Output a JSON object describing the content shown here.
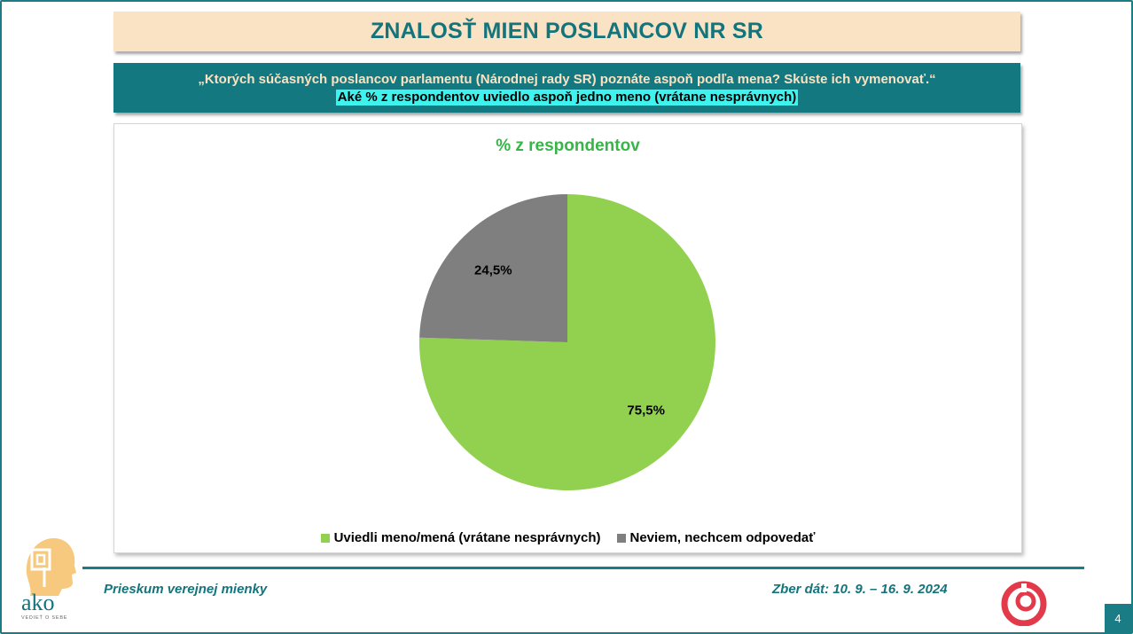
{
  "header": {
    "title": "ZNALOSŤ MIEN POSLANCOV NR SR",
    "question": "„Ktorých súčasných poslancov parlamentu (Národnej rady SR) poznáte aspoň podľa mena? Skúste ich vymenovať.“",
    "subquestion": "Aké % z respondentov uviedlo aspoň jedno meno (vrátane nesprávnych)"
  },
  "chart_data": {
    "type": "pie",
    "title": "% z respondentov",
    "categories": [
      "Uviedli meno/mená (vrátane nesprávnych)",
      "Neviem, nechcem odpovedať"
    ],
    "values": [
      75.5,
      24.5
    ],
    "value_labels": [
      "75,5%",
      "24,5%"
    ],
    "colors": [
      "#92d050",
      "#7f7f7f"
    ],
    "legend_position": "bottom"
  },
  "footer": {
    "left": "Prieskum verejnej mienky",
    "right": "Zber dát: 10. 9. – 16. 9. 2024",
    "page_number": "4"
  },
  "brand": {
    "logo_text": "ako",
    "logo_tagline": "VEDIEŤ O SEBE",
    "accent": "#1a7c84"
  }
}
